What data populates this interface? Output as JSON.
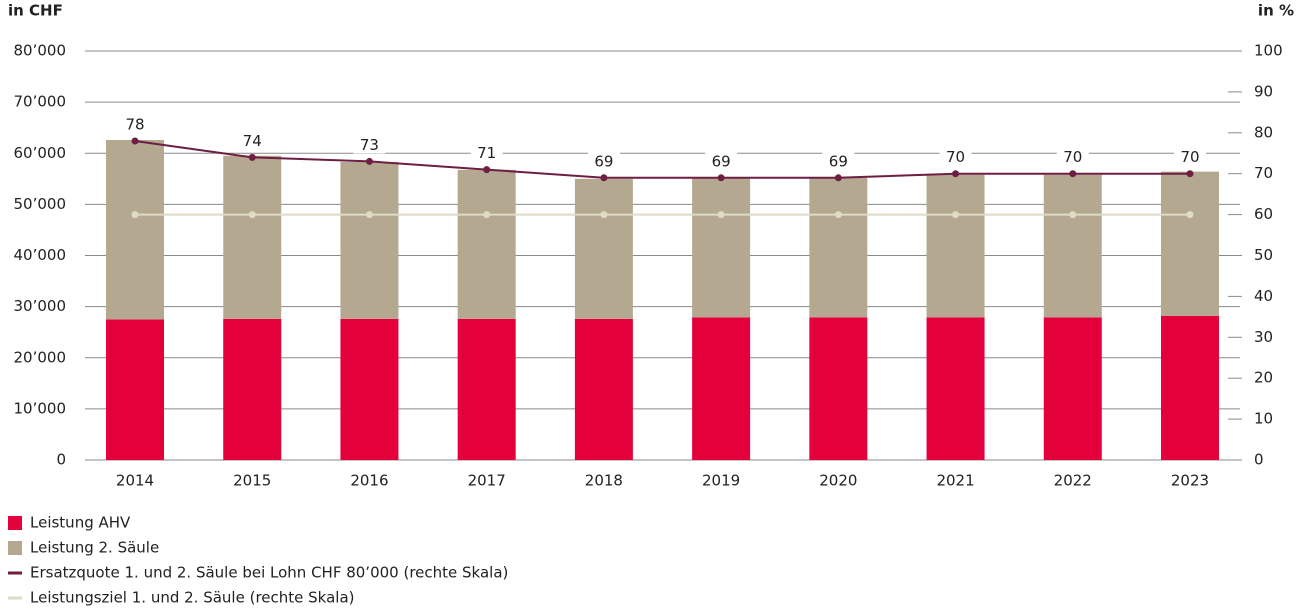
{
  "chart_data": {
    "type": "bar",
    "stacked": true,
    "y_label": "in CHF",
    "y2_label": "in %",
    "categories": [
      "2014",
      "2015",
      "2016",
      "2017",
      "2018",
      "2019",
      "2020",
      "2021",
      "2022",
      "2023"
    ],
    "series": [
      {
        "name": "Leistung AHV",
        "type": "bar",
        "color": "#e4003a",
        "values": [
          27500,
          27600,
          27600,
          27600,
          27600,
          27900,
          27900,
          27900,
          27900,
          28200
        ]
      },
      {
        "name": "Leistung 2. Säule",
        "type": "bar",
        "color": "#b4a890",
        "values": [
          35100,
          31900,
          30700,
          29150,
          27400,
          27300,
          27300,
          27900,
          27900,
          28200
        ]
      },
      {
        "name": "Ersatzquote 1. und 2. Säule bei Lohn CHF 80’000 (rechte Skala)",
        "type": "line",
        "axis": "y2",
        "color": "#6e1e42",
        "data_labels": true,
        "values": [
          78,
          74,
          73,
          71,
          69,
          69,
          69,
          70,
          70,
          70
        ]
      },
      {
        "name": "Leistungsziel 1. und 2. Säule (rechte Skala)",
        "type": "line",
        "axis": "y2",
        "color": "#dedbc6",
        "data_labels": false,
        "values": [
          60,
          60,
          60,
          60,
          60,
          60,
          60,
          60,
          60,
          60
        ]
      }
    ],
    "ylim": [
      0,
      80000
    ],
    "yticks": [
      0,
      {
        "value": 10000,
        "label": "10’000"
      },
      {
        "value": 20000,
        "label": "20’000"
      },
      {
        "value": 30000,
        "label": "30’000"
      },
      {
        "value": 40000,
        "label": "40’000"
      },
      {
        "value": 50000,
        "label": "50’000"
      },
      {
        "value": 60000,
        "label": "60’000"
      },
      {
        "value": 70000,
        "label": "70’000"
      },
      {
        "value": 80000,
        "label": "80’000"
      }
    ],
    "y2lim": [
      0,
      100
    ],
    "y2ticks": [
      0,
      10,
      20,
      30,
      40,
      50,
      60,
      70,
      80,
      90,
      100
    ],
    "grid": true
  }
}
